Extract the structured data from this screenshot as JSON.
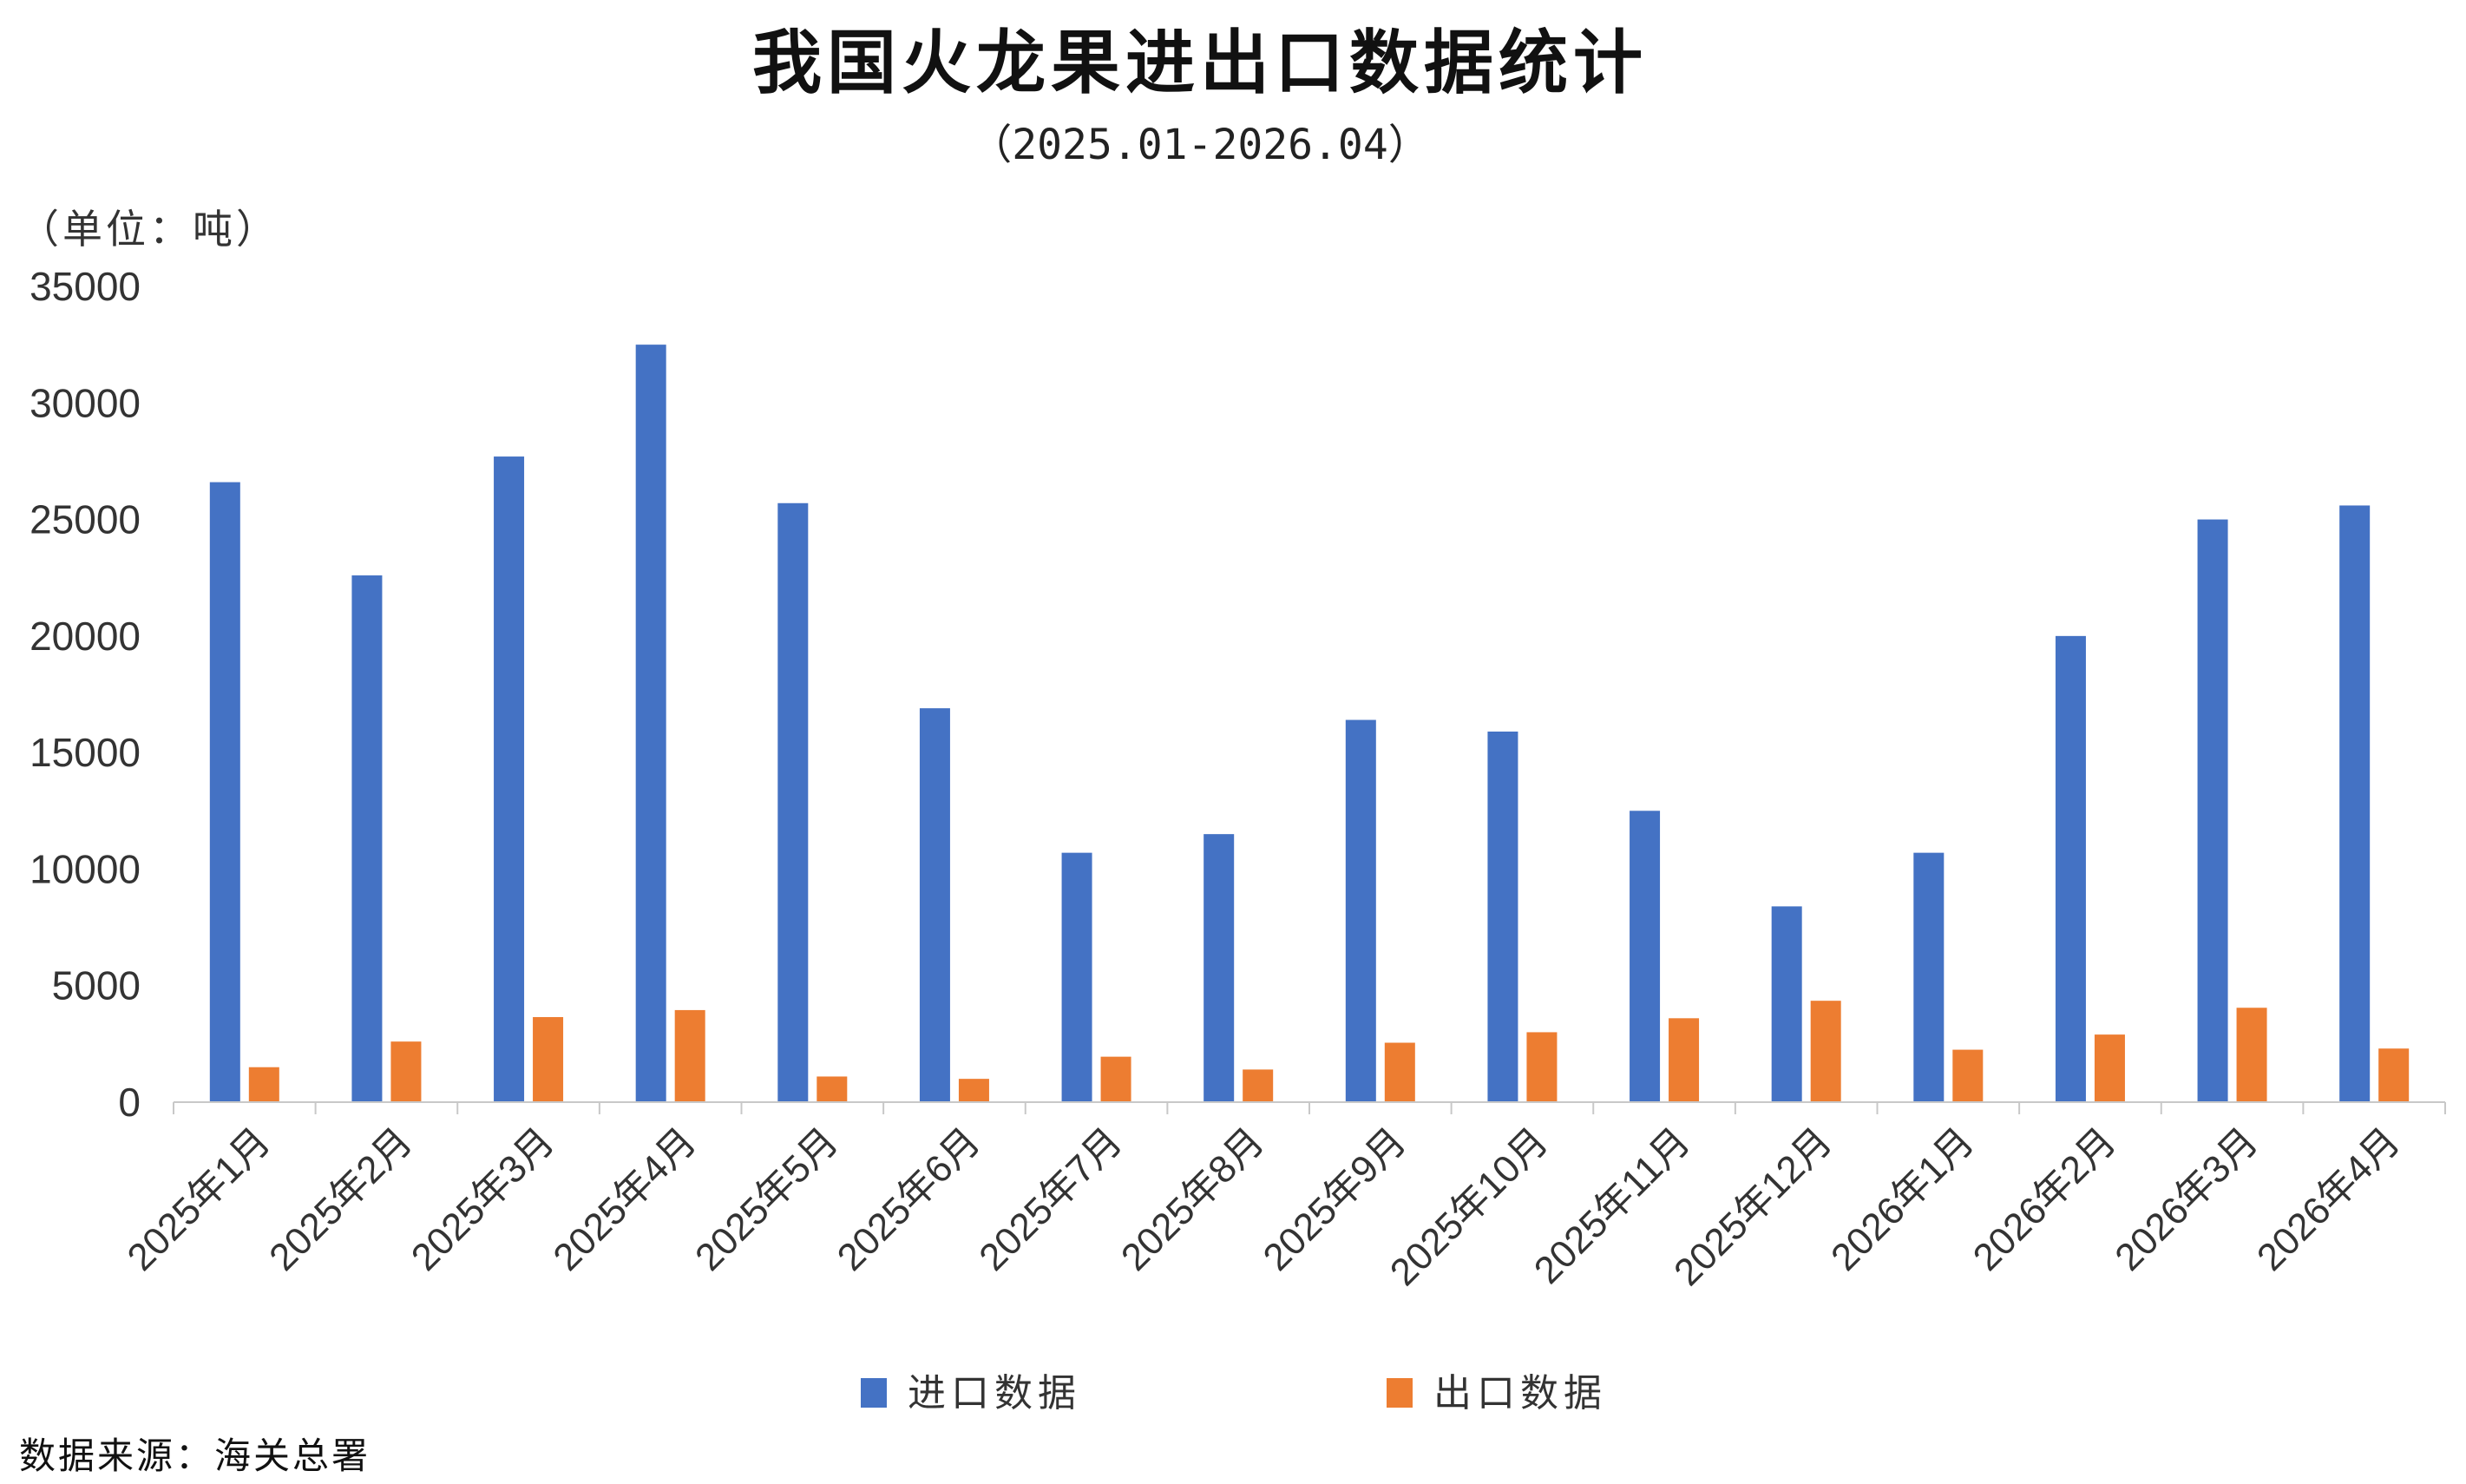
{
  "chart_data": {
    "type": "bar",
    "title": "我国火龙果进出口数据统计",
    "subtitle": "（2025.01-2026.04）",
    "unit_label": "（单位：吨）",
    "source": "数据来源：海关总署",
    "ylim": [
      0,
      35000
    ],
    "yticks": [
      0,
      5000,
      10000,
      15000,
      20000,
      25000,
      30000,
      35000
    ],
    "grid": false,
    "legend_position": "bottom",
    "categories": [
      "2025年1月",
      "2025年2月",
      "2025年3月",
      "2025年4月",
      "2025年5月",
      "2025年6月",
      "2025年7月",
      "2025年8月",
      "2025年9月",
      "2025年10月",
      "2025年11月",
      "2025年12月",
      "2026年1月",
      "2026年2月",
      "2026年3月",
      "2026年4月"
    ],
    "series": [
      {
        "name": "进口数据",
        "color": "#4472C4",
        "values": [
          26600,
          22600,
          27700,
          32500,
          25700,
          16900,
          10700,
          11500,
          16400,
          15900,
          12500,
          8400,
          10700,
          20000,
          25000,
          25600
        ]
      },
      {
        "name": "出口数据",
        "color": "#ED7D31",
        "values": [
          1500,
          2600,
          3650,
          3950,
          1100,
          1000,
          1950,
          1400,
          2550,
          3000,
          3600,
          4350,
          2250,
          2900,
          4050,
          2300
        ]
      }
    ]
  }
}
